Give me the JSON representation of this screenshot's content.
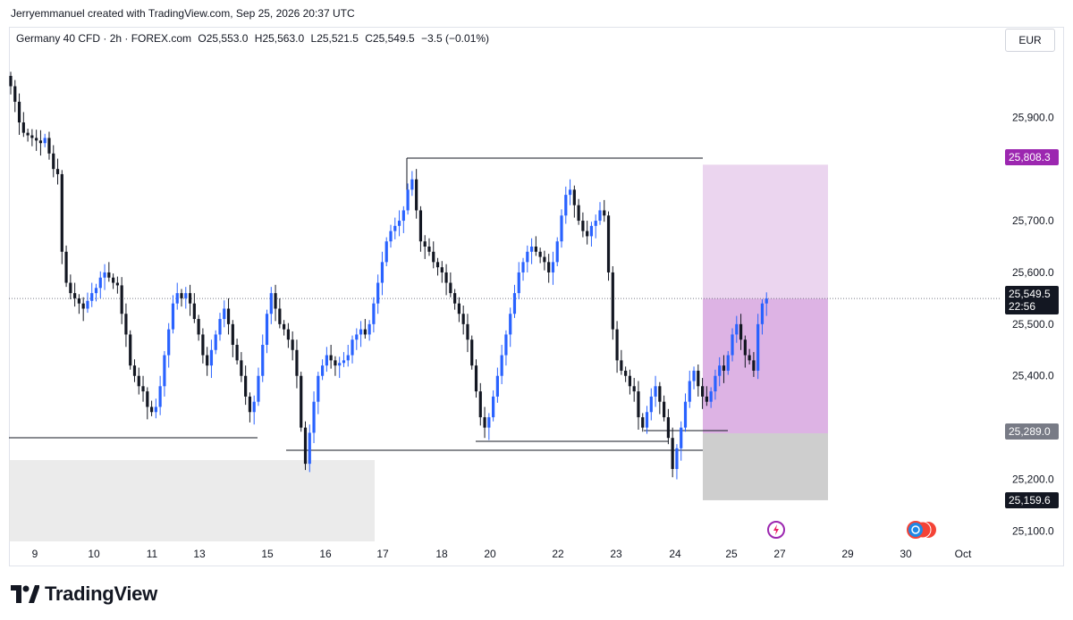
{
  "caption": "Jerryemmanuel created with TradingView.com, Sep 25, 2026 20:37 UTC",
  "legend": {
    "symbol": "Germany 40 CFD · 2h · FOREX.com",
    "open": "O25,553.0",
    "high": "H25,563.0",
    "low": "L25,521.5",
    "close": "C25,549.5",
    "change": "−3.5 (−0.01%)"
  },
  "currency": "EUR",
  "brand": "TradingView",
  "colors": {
    "up": "#2962ff",
    "down": "#131722",
    "target_zone": "#e1bee7",
    "stop_zone": "#bdbdbd",
    "tag_target": "#9c27b0",
    "tag_stop": "#787b86",
    "tag_close": "#131722"
  },
  "price_tags": {
    "target": "25,808.3",
    "current": "25,549.5",
    "countdown": "22:56",
    "entry": "25,289.0",
    "stop": "25,159.6"
  },
  "chart_data": {
    "type": "candlestick",
    "ylim": [
      25080,
      26030
    ],
    "y_ticks": [
      25100,
      25200,
      25300,
      25400,
      25500,
      25600,
      25700,
      25900
    ],
    "y_tick_labels": [
      "25,100.0",
      "25,200.0",
      "25,300.0",
      "25,400.0",
      "25,500.0",
      "25,600.0",
      "25,700.0",
      "25,900.0"
    ],
    "x_tick_labels": [
      "9",
      "10",
      "11",
      "13",
      "15",
      "16",
      "17",
      "18",
      "20",
      "22",
      "23",
      "24",
      "25",
      "27",
      "29",
      "30",
      "Oct"
    ],
    "n_slots": 240,
    "x_tick_slots": [
      6,
      21,
      35,
      49,
      63,
      77,
      90,
      104,
      116,
      132,
      146,
      160,
      174,
      186,
      202,
      216,
      230
    ],
    "closes": [
      25960,
      25930,
      25890,
      25870,
      25865,
      25860,
      25855,
      25850,
      25860,
      25830,
      25800,
      25790,
      25640,
      25580,
      25560,
      25550,
      25540,
      25530,
      25545,
      25560,
      25570,
      25590,
      25600,
      25590,
      25580,
      25575,
      25520,
      25480,
      25420,
      25400,
      25380,
      25370,
      25340,
      25330,
      25340,
      25380,
      25440,
      25490,
      25540,
      25560,
      25550,
      25560,
      25540,
      25510,
      25480,
      25440,
      25420,
      25450,
      25480,
      25510,
      25530,
      25500,
      25460,
      25430,
      25400,
      25360,
      25330,
      25350,
      25400,
      25460,
      25520,
      25560,
      25530,
      25500,
      25490,
      25470,
      25450,
      25400,
      25300,
      25230,
      25290,
      25350,
      25400,
      25420,
      25440,
      25430,
      25420,
      25425,
      25430,
      25440,
      25470,
      25480,
      25490,
      25480,
      25500,
      25540,
      25580,
      25620,
      25660,
      25680,
      25690,
      25700,
      25720,
      25760,
      25780,
      25720,
      25660,
      25650,
      25640,
      25620,
      25610,
      25600,
      25580,
      25560,
      25540,
      25520,
      25500,
      25470,
      25420,
      25370,
      25320,
      25300,
      25320,
      25360,
      25400,
      25440,
      25480,
      25520,
      25560,
      25600,
      25620,
      25640,
      25650,
      25640,
      25630,
      25620,
      25600,
      25620,
      25660,
      25710,
      25750,
      25760,
      25730,
      25700,
      25680,
      25670,
      25690,
      25700,
      25720,
      25710,
      25600,
      25490,
      25430,
      25410,
      25400,
      25380,
      25370,
      25320,
      25300,
      25330,
      25360,
      25380,
      25350,
      25320,
      25280,
      25220,
      25260,
      25300,
      25350,
      25390,
      25410,
      25380,
      25360,
      25350,
      25370,
      25400,
      25420,
      25410,
      25440,
      25480,
      25500,
      25470,
      25440,
      25430,
      25410,
      25500,
      25540,
      25549.5
    ],
    "zones": {
      "target_top": 25808.3,
      "entry": 25289.0,
      "stop": 25159.6,
      "current": 25549.5
    }
  }
}
